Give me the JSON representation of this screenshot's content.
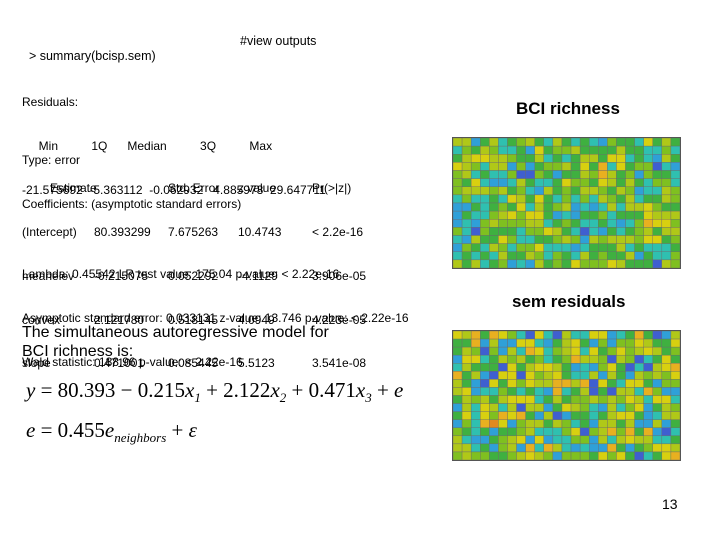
{
  "command": {
    "code": "> summary(bcisp.sem)",
    "comment": "#view outputs"
  },
  "residuals": {
    "label": "Residuals:",
    "header": "     Min          1Q      Median          3Q          Max",
    "values": "-21.575692  -5.363112  -0.062932   4.885973  29.647711"
  },
  "coefficients": {
    "type_line": "Type: error",
    "title": "Coefficients: (asymptotic standard errors)",
    "columns": [
      "Estimate",
      "Std. Error",
      "z value",
      "Pr(>|z|)"
    ],
    "rows": [
      {
        "name": "(Intercept)",
        "estimate": "80.393299",
        "std_error": "7.675263",
        "z": "10.4743",
        "p": "< 2.2e-16"
      },
      {
        "name": "meanelev",
        "estimate": "-0.215075",
        "std_error": "0.052292",
        "z": "-4.1129",
        "p": "3.906e-05"
      },
      {
        "name": "convex",
        "estimate": "2.121780",
        "std_error": "0.518145",
        "z": "4.0949",
        "p": "4.223e-05"
      },
      {
        "name": "slope",
        "estimate": "0.471001",
        "std_error": "0.085445",
        "z": "5.5123",
        "p": "3.541e-08"
      }
    ]
  },
  "tests": {
    "lambda": "Lambda: 0.45542 LR test value: 175.04 p-value: < 2.22e-16",
    "ase": "Asymptotic standard error: 0.033131 z-value: 13.746 p-value: < 2.22e-16",
    "wald": "Wald statistic: 188.96 p-value: < 2.22e-16"
  },
  "model": {
    "text": "The simultaneous autoregressive model for\nBCI richness is:",
    "eq1": {
      "y": "y",
      "rhs1": " = 80.393 − 0.215",
      "x1": "x",
      "s1": "1",
      "rhs2": " + 2.122",
      "x2": "x",
      "s2": "2",
      "rhs3": " + 0.471",
      "x3": "x",
      "s3": "3",
      "rhs4": " + ",
      "e": "e"
    },
    "eq2": {
      "e": "e",
      "rhs": " = 0.455",
      "e2": "e",
      "sub": "neighbors",
      "plus": " + ",
      "eps": "ε"
    }
  },
  "maps": {
    "richness_title": "BCI richness",
    "residuals_title": "sem residuals",
    "palette": [
      "#2f2fa6",
      "#3f5fd0",
      "#2fa0d8",
      "#2fc0b0",
      "#3fb040",
      "#7fc020",
      "#b0c818",
      "#d8d010",
      "#e8b020",
      "#e08a20"
    ]
  },
  "page_number": "13"
}
